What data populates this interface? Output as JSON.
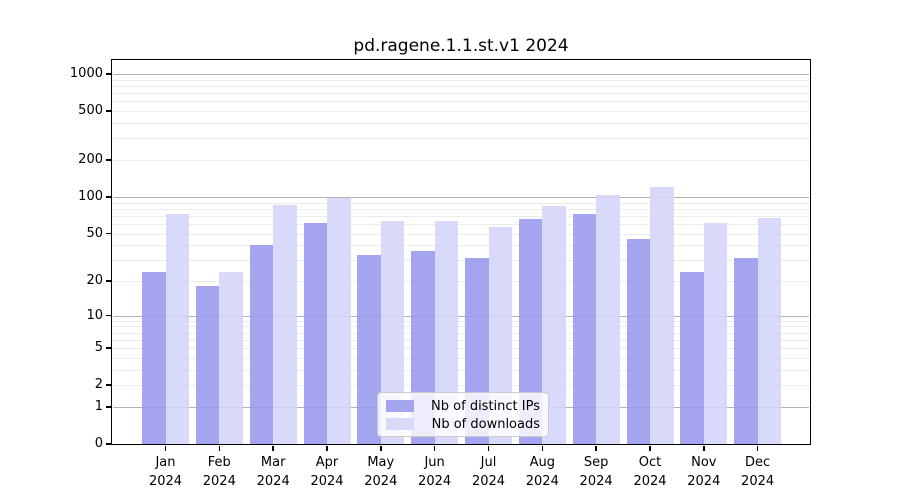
{
  "title": "pd.ragene.1.1.st.v1 2024",
  "chart_data": {
    "type": "bar",
    "title": "pd.ragene.1.1.st.v1 2024",
    "categories": [
      "Jan",
      "Feb",
      "Mar",
      "Apr",
      "May",
      "Jun",
      "Jul",
      "Aug",
      "Sep",
      "Oct",
      "Nov",
      "Dec"
    ],
    "category_year": "2024",
    "series": [
      {
        "name": "Nb of distinct IPs",
        "color": "#a4a4ef",
        "values": [
          24,
          18,
          40,
          61,
          33,
          36,
          31,
          66,
          72,
          45,
          24,
          31
        ]
      },
      {
        "name": "Nb of downloads",
        "color": "#d9d9f9",
        "values": [
          72,
          24,
          86,
          98,
          64,
          63,
          57,
          84,
          103,
          121,
          61,
          67
        ]
      }
    ],
    "xlabel": "",
    "ylabel": "",
    "yscale": "log10(1+x)",
    "yticks": [
      0,
      1,
      2,
      5,
      10,
      20,
      50,
      100,
      200,
      500,
      1000
    ],
    "ylim": [
      0,
      1275
    ],
    "grid": {
      "major_at": [
        1,
        10,
        100,
        1000
      ],
      "minor_rule": "k*10^n, k=2..9, n=0..2",
      "major_color": "#b3b3b3",
      "minor_color": "#ececec"
    },
    "legend": {
      "position": "bottom-center",
      "labels": [
        "Nb of distinct IPs",
        "Nb of downloads"
      ]
    }
  }
}
